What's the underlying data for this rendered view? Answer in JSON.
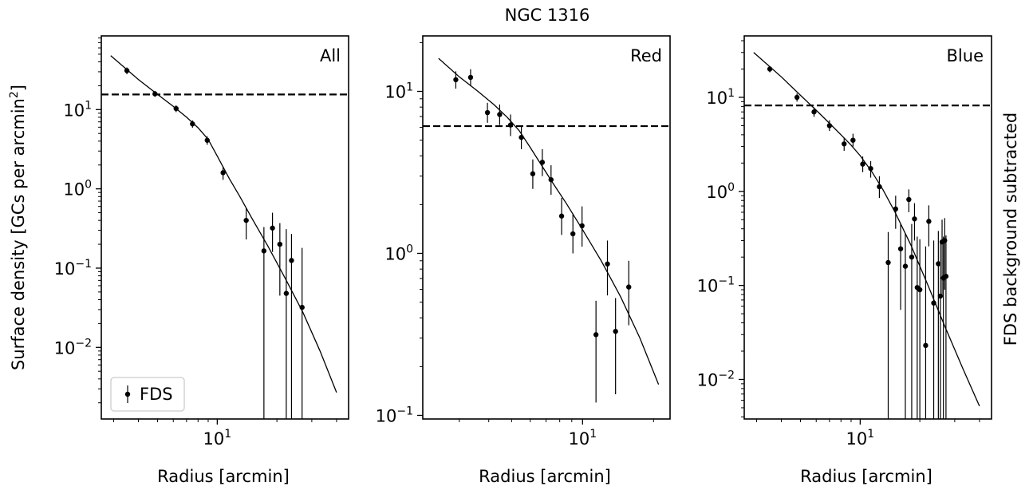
{
  "figure": {
    "title": "NGC 1316",
    "ylabel": "Surface density [GCs per arcmin",
    "ylabel_sup": "2",
    "ylabel_end": "]",
    "right_label": "FDS background subtracted",
    "legend": {
      "label": "FDS"
    }
  },
  "chart_data": [
    {
      "type": "scatter",
      "panel_label": "All",
      "xlabel": "Radius [arcmin]",
      "xscale": "log",
      "yscale": "log",
      "xlim": [
        2.6,
        46
      ],
      "ylim": [
        0.00125,
        85
      ],
      "xticks": [
        {
          "value": 10,
          "base": "10",
          "exp": "1"
        }
      ],
      "yticks": [
        {
          "value": 10,
          "base": "10",
          "exp": "1"
        },
        {
          "value": 1,
          "base": "10",
          "exp": "0"
        },
        {
          "value": 0.1,
          "base": "10",
          "exp": "−1"
        },
        {
          "value": 0.01,
          "base": "10",
          "exp": "−2"
        }
      ],
      "hline": 15.5,
      "legend": true,
      "points": [
        {
          "x": 3.5,
          "y": 31,
          "lo": 28,
          "hi": 34
        },
        {
          "x": 4.85,
          "y": 15.8,
          "lo": 14.5,
          "hi": 17.2
        },
        {
          "x": 6.2,
          "y": 10.3,
          "lo": 9.3,
          "hi": 11.3
        },
        {
          "x": 7.5,
          "y": 6.6,
          "lo": 5.9,
          "hi": 7.3
        },
        {
          "x": 8.9,
          "y": 4.1,
          "lo": 3.6,
          "hi": 4.6
        },
        {
          "x": 10.7,
          "y": 1.6,
          "lo": 1.3,
          "hi": 1.9
        },
        {
          "x": 14,
          "y": 0.4,
          "lo": 0.23,
          "hi": 0.57
        },
        {
          "x": 17.2,
          "y": 0.165,
          "lo": 0.0005,
          "hi": 0.33
        },
        {
          "x": 19,
          "y": 0.32,
          "lo": 0.16,
          "hi": 0.5
        },
        {
          "x": 20.7,
          "y": 0.2,
          "lo": 0.045,
          "hi": 0.37
        },
        {
          "x": 22.3,
          "y": 0.048,
          "lo": 0.0005,
          "hi": 0.31
        },
        {
          "x": 23.7,
          "y": 0.125,
          "lo": 0.0005,
          "hi": 0.27
        },
        {
          "x": 26.8,
          "y": 0.032,
          "lo": 0.0005,
          "hi": 0.18
        }
      ],
      "model": {
        "x": [
          2.9,
          4,
          5,
          6,
          7,
          8,
          9,
          10,
          11.5,
          13,
          15,
          18,
          22,
          27,
          33,
          40
        ],
        "y": [
          48,
          24,
          15.5,
          11,
          8,
          5.9,
          4.2,
          2.6,
          1.35,
          0.8,
          0.42,
          0.19,
          0.075,
          0.028,
          0.009,
          0.0027
        ]
      }
    },
    {
      "type": "scatter",
      "panel_label": "Red",
      "xlabel": "Radius [arcmin]",
      "xscale": "log",
      "yscale": "log",
      "xlim": [
        2.1,
        23.5
      ],
      "ylim": [
        0.095,
        22
      ],
      "xticks": [
        {
          "value": 10,
          "base": "10",
          "exp": "1"
        }
      ],
      "yticks": [
        {
          "value": 10,
          "base": "10",
          "exp": "1"
        },
        {
          "value": 1,
          "base": "10",
          "exp": "0"
        },
        {
          "value": 0.1,
          "base": "10",
          "exp": "−1"
        }
      ],
      "hline": 6.1,
      "legend": false,
      "points": [
        {
          "x": 2.9,
          "y": 11.8,
          "lo": 10.4,
          "hi": 13.3
        },
        {
          "x": 3.35,
          "y": 12.2,
          "lo": 10.8,
          "hi": 13.7
        },
        {
          "x": 3.95,
          "y": 7.4,
          "lo": 6.4,
          "hi": 8.5
        },
        {
          "x": 4.45,
          "y": 7.2,
          "lo": 6.2,
          "hi": 8.3
        },
        {
          "x": 4.95,
          "y": 6.2,
          "lo": 5.3,
          "hi": 7.2
        },
        {
          "x": 5.5,
          "y": 5.2,
          "lo": 4.4,
          "hi": 6.1
        },
        {
          "x": 6.15,
          "y": 3.1,
          "lo": 2.5,
          "hi": 3.8
        },
        {
          "x": 6.75,
          "y": 3.65,
          "lo": 3.0,
          "hi": 4.4
        },
        {
          "x": 7.35,
          "y": 2.85,
          "lo": 2.3,
          "hi": 3.5
        },
        {
          "x": 8.15,
          "y": 1.7,
          "lo": 1.3,
          "hi": 2.2
        },
        {
          "x": 9.1,
          "y": 1.32,
          "lo": 1.0,
          "hi": 1.75
        },
        {
          "x": 9.95,
          "y": 1.48,
          "lo": 1.1,
          "hi": 1.95
        },
        {
          "x": 11.4,
          "y": 0.315,
          "lo": 0.12,
          "hi": 0.51
        },
        {
          "x": 12.75,
          "y": 0.86,
          "lo": 0.55,
          "hi": 1.2
        },
        {
          "x": 13.8,
          "y": 0.33,
          "lo": 0.135,
          "hi": 0.53
        },
        {
          "x": 15.7,
          "y": 0.62,
          "lo": 0.36,
          "hi": 0.9
        }
      ],
      "model": {
        "x": [
          2.45,
          3,
          3.6,
          4.2,
          4.8,
          5.4,
          6,
          6.7,
          7.5,
          8.5,
          10,
          12,
          14.5,
          17.5,
          21
        ],
        "y": [
          16,
          12.3,
          10,
          8.3,
          6.9,
          5.7,
          4.5,
          3.5,
          2.7,
          2.05,
          1.4,
          0.9,
          0.54,
          0.3,
          0.155
        ]
      }
    },
    {
      "type": "scatter",
      "panel_label": "Blue",
      "xlabel": "Radius [arcmin]",
      "xscale": "log",
      "yscale": "log",
      "xlim": [
        2.6,
        46
      ],
      "ylim": [
        0.0038,
        45
      ],
      "xticks": [
        {
          "value": 10,
          "base": "10",
          "exp": "1"
        }
      ],
      "yticks": [
        {
          "value": 10,
          "base": "10",
          "exp": "1"
        },
        {
          "value": 1,
          "base": "10",
          "exp": "0"
        },
        {
          "value": 0.1,
          "base": "10",
          "exp": "−1"
        },
        {
          "value": 0.01,
          "base": "10",
          "exp": "−2"
        }
      ],
      "hline": 8.2,
      "legend": false,
      "points": [
        {
          "x": 3.5,
          "y": 20,
          "lo": 18.5,
          "hi": 21.5
        },
        {
          "x": 4.8,
          "y": 10,
          "lo": 9.0,
          "hi": 11.0
        },
        {
          "x": 5.85,
          "y": 7.0,
          "lo": 6.2,
          "hi": 7.8
        },
        {
          "x": 7.0,
          "y": 5.0,
          "lo": 4.4,
          "hi": 5.7
        },
        {
          "x": 8.3,
          "y": 3.2,
          "lo": 2.7,
          "hi": 3.7
        },
        {
          "x": 9.2,
          "y": 3.5,
          "lo": 3.0,
          "hi": 4.1
        },
        {
          "x": 10.3,
          "y": 1.95,
          "lo": 1.6,
          "hi": 2.35
        },
        {
          "x": 11.3,
          "y": 1.75,
          "lo": 1.4,
          "hi": 2.1
        },
        {
          "x": 12.5,
          "y": 1.12,
          "lo": 0.85,
          "hi": 1.45
        },
        {
          "x": 13.85,
          "y": 0.175,
          "lo": 0.0005,
          "hi": 0.37
        },
        {
          "x": 15.1,
          "y": 0.65,
          "lo": 0.4,
          "hi": 0.9
        },
        {
          "x": 16.0,
          "y": 0.245,
          "lo": 0.055,
          "hi": 0.45
        },
        {
          "x": 16.9,
          "y": 0.16,
          "lo": 0.0005,
          "hi": 0.36
        },
        {
          "x": 17.6,
          "y": 0.82,
          "lo": 0.6,
          "hi": 1.05
        },
        {
          "x": 18.2,
          "y": 0.2,
          "lo": 0.0005,
          "hi": 0.45
        },
        {
          "x": 18.8,
          "y": 0.51,
          "lo": 0.3,
          "hi": 0.75
        },
        {
          "x": 19.4,
          "y": 0.095,
          "lo": 0.0005,
          "hi": 0.33
        },
        {
          "x": 20.0,
          "y": 0.09,
          "lo": 0.0005,
          "hi": 0.31
        },
        {
          "x": 21.4,
          "y": 0.023,
          "lo": 0.0005,
          "hi": 0.26
        },
        {
          "x": 22.2,
          "y": 0.48,
          "lo": 0.26,
          "hi": 0.71
        },
        {
          "x": 23.5,
          "y": 0.065,
          "lo": 0.0005,
          "hi": 0.3
        },
        {
          "x": 24.8,
          "y": 0.17,
          "lo": 0.0005,
          "hi": 0.38
        },
        {
          "x": 25.4,
          "y": 0.077,
          "lo": 0.0005,
          "hi": 0.28
        },
        {
          "x": 25.9,
          "y": 0.29,
          "lo": 0.08,
          "hi": 0.5
        },
        {
          "x": 26.3,
          "y": 0.12,
          "lo": 0.0005,
          "hi": 0.33
        },
        {
          "x": 26.7,
          "y": 0.3,
          "lo": 0.09,
          "hi": 0.52
        },
        {
          "x": 27.1,
          "y": 0.125,
          "lo": 0.0005,
          "hi": 0.34
        }
      ],
      "model": {
        "x": [
          2.9,
          4,
          5,
          6,
          7,
          8,
          9,
          10,
          11.5,
          13,
          15,
          18,
          22,
          27,
          33,
          40
        ],
        "y": [
          30,
          16.5,
          10.5,
          7.3,
          5.3,
          4.0,
          3.1,
          2.4,
          1.6,
          1.05,
          0.6,
          0.27,
          0.1,
          0.035,
          0.013,
          0.0052
        ]
      }
    }
  ]
}
